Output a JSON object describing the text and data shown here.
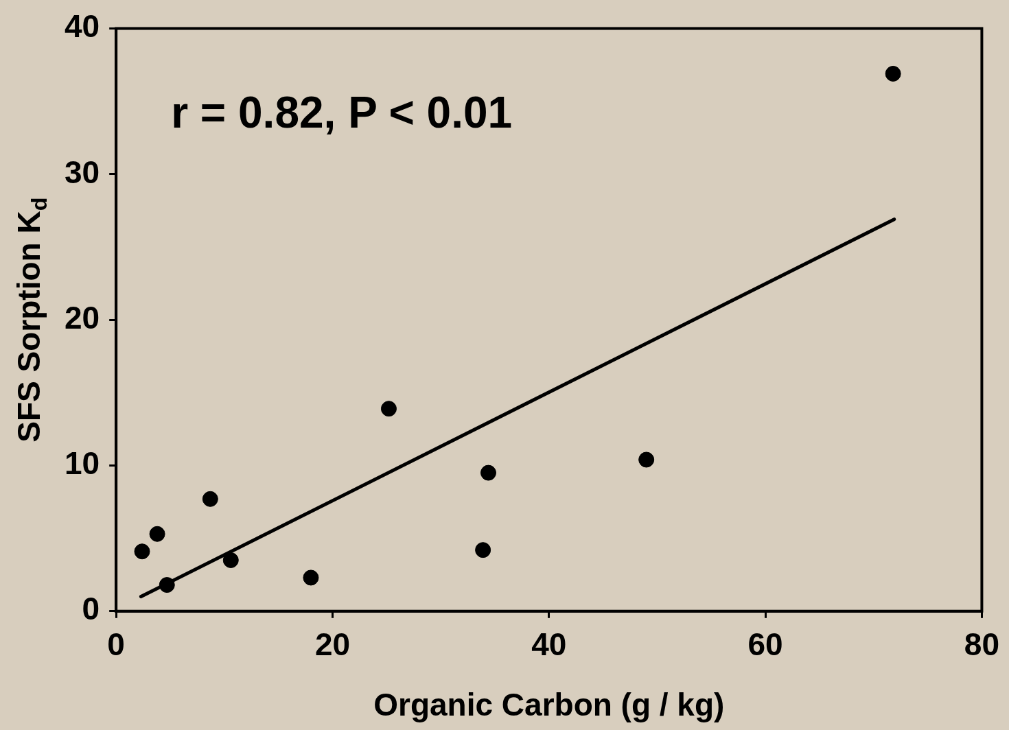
{
  "chart_data": {
    "type": "scatter",
    "xlabel": "Organic Carbon (g / kg)",
    "ylabel": "SFS Sorption K$_{d}$",
    "xlim": [
      0,
      80
    ],
    "xticks": [
      0,
      20,
      40,
      60,
      80
    ],
    "ylim": [
      0,
      40
    ],
    "yticks": [
      0,
      10,
      20,
      30,
      40
    ],
    "grid": false,
    "legend": false,
    "marker": "circle",
    "annotations": [
      "r = 0.82, P < 0.01"
    ],
    "series": [
      {
        "color": "#000000",
        "x": [
          2.4,
          3.8,
          4.7,
          8.7,
          10.6,
          18.0,
          25.2,
          33.9,
          34.4,
          49.0,
          71.8
        ],
        "values": [
          4.1,
          5.3,
          1.8,
          7.7,
          3.5,
          2.3,
          13.9,
          4.2,
          9.5,
          10.4,
          36.9
        ]
      },
      {
        "type": "line",
        "color": "#000000",
        "line_style": "solid",
        "marker": "none",
        "x": [
          2.3,
          71.9
        ],
        "values": [
          1.0,
          26.9
        ]
      }
    ]
  }
}
